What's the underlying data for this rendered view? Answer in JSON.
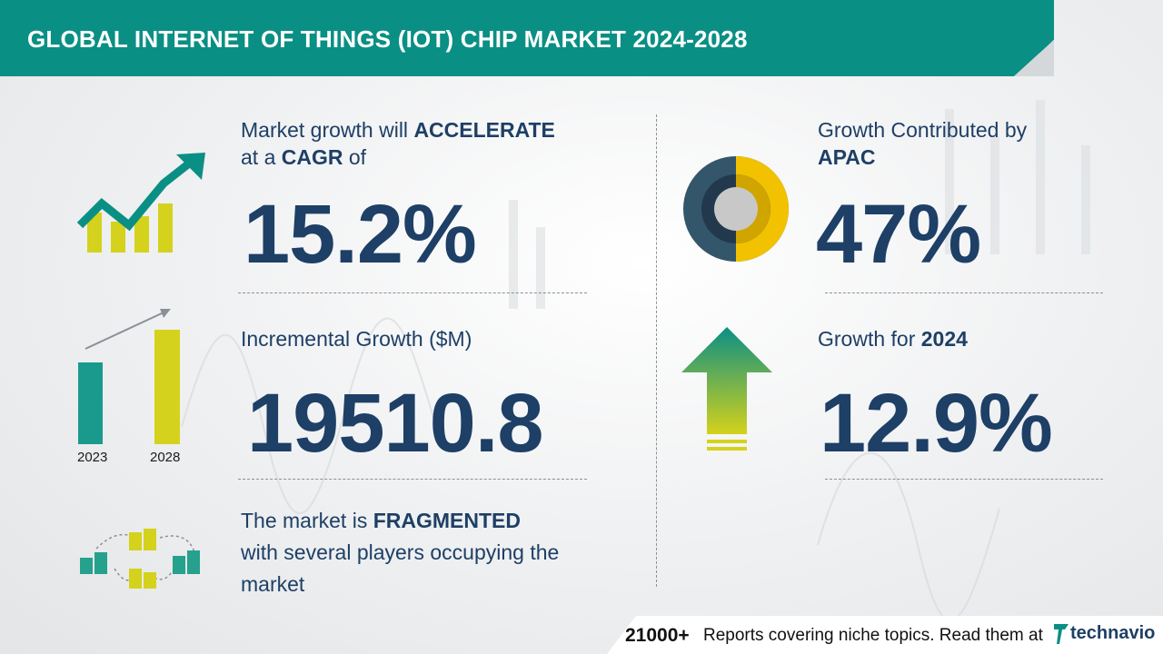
{
  "header": {
    "title": "GLOBAL INTERNET OF THINGS (IOT) CHIP MARKET 2024-2028"
  },
  "cagr": {
    "line1_prefix": "Market growth will ",
    "line1_emphasis": "ACCELERATE",
    "line2_prefix": "at a ",
    "line2_emphasis": "CAGR",
    "line2_suffix": " of",
    "value": "15.2%"
  },
  "incremental": {
    "label": "Incremental Growth ($M)",
    "value": "19510.8",
    "bar_start_label": "2023",
    "bar_end_label": "2028"
  },
  "market_structure": {
    "line1_prefix": "The market is ",
    "line1_emphasis": "FRAGMENTED",
    "line2": "with several players occupying the",
    "line3": "market"
  },
  "region": {
    "label": "Growth Contributed by",
    "emphasis": "APAC",
    "value": "47%",
    "share": 0.47
  },
  "yoy": {
    "label_prefix": "Growth for ",
    "label_emphasis": "2024",
    "value": "12.9%"
  },
  "footer": {
    "count": "21000+",
    "text": "Reports covering niche topics. Read them at",
    "brand": "technavio"
  },
  "colors": {
    "header_teal": "#0a8f84",
    "text_navy": "#1e3f66",
    "accent_yellow": "#f2c200",
    "accent_lime": "#d4d21c",
    "accent_green": "#25a18e"
  }
}
